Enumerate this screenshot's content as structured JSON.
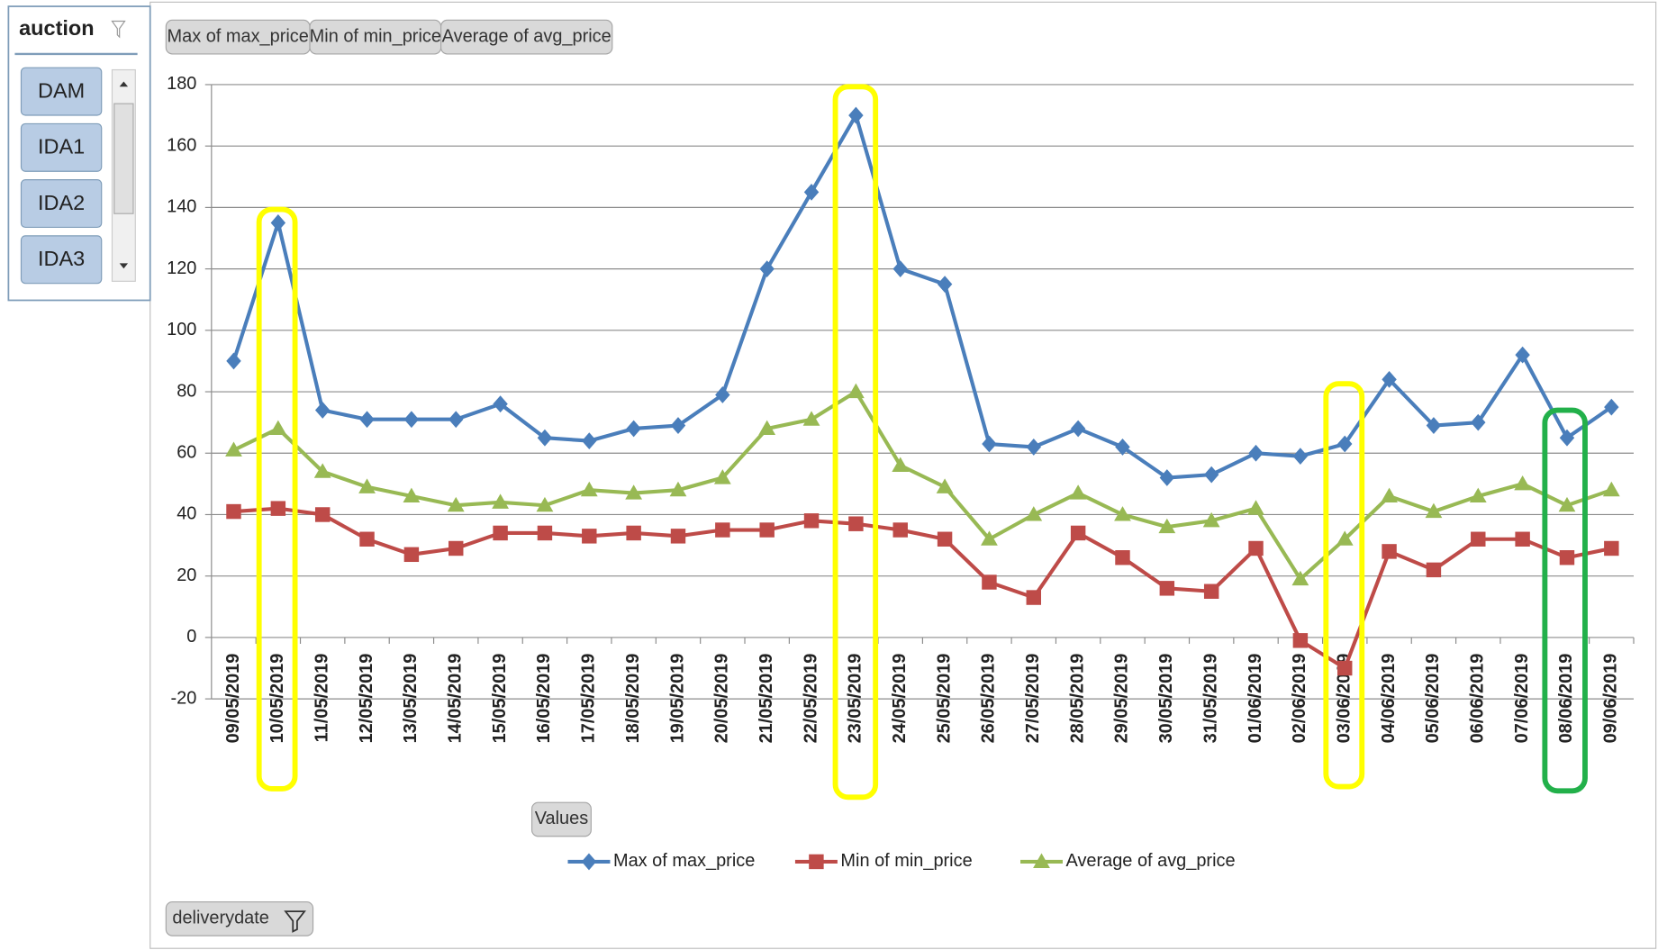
{
  "slicer": {
    "title": "auction",
    "items": [
      "DAM",
      "IDA1",
      "IDA2",
      "IDA3"
    ]
  },
  "field_buttons": {
    "values": "Values",
    "axis": "deliverydate"
  },
  "chart_data": {
    "type": "line",
    "categories": [
      "09/05/2019",
      "10/05/2019",
      "11/05/2019",
      "12/05/2019",
      "13/05/2019",
      "14/05/2019",
      "15/05/2019",
      "16/05/2019",
      "17/05/2019",
      "18/05/2019",
      "19/05/2019",
      "20/05/2019",
      "21/05/2019",
      "22/05/2019",
      "23/05/2019",
      "24/05/2019",
      "25/05/2019",
      "26/05/2019",
      "27/05/2019",
      "28/05/2019",
      "29/05/2019",
      "30/05/2019",
      "31/05/2019",
      "01/06/2019",
      "02/06/2019",
      "03/06/2019",
      "04/06/2019",
      "05/06/2019",
      "06/06/2019",
      "07/06/2019",
      "08/06/2019",
      "09/06/2019"
    ],
    "series": [
      {
        "name": "Max of max_price",
        "color": "#4a7ebb",
        "marker": "diamond",
        "values": [
          90,
          135,
          74,
          71,
          71,
          71,
          76,
          65,
          64,
          68,
          69,
          79,
          120,
          145,
          170,
          120,
          115,
          63,
          62,
          68,
          62,
          52,
          53,
          60,
          59,
          63,
          84,
          69,
          70,
          92,
          65,
          75
        ]
      },
      {
        "name": "Min of min_price",
        "color": "#be4b48",
        "marker": "square",
        "values": [
          41,
          42,
          40,
          32,
          27,
          29,
          34,
          34,
          33,
          34,
          33,
          35,
          35,
          38,
          37,
          35,
          32,
          18,
          13,
          34,
          26,
          16,
          15,
          29,
          -1,
          -10,
          28,
          22,
          32,
          32,
          26,
          29
        ]
      },
      {
        "name": "Average of avg_price",
        "color": "#98b954",
        "marker": "triangle",
        "values": [
          61,
          68,
          54,
          49,
          46,
          43,
          44,
          43,
          48,
          47,
          48,
          52,
          68,
          71,
          80,
          56,
          49,
          32,
          40,
          47,
          40,
          36,
          38,
          42,
          19,
          32,
          46,
          41,
          46,
          50,
          43,
          48
        ]
      }
    ],
    "ylim": [
      -20,
      180
    ],
    "yticks": [
      -20,
      0,
      20,
      40,
      60,
      80,
      100,
      120,
      140,
      160,
      180
    ],
    "grid": true
  }
}
